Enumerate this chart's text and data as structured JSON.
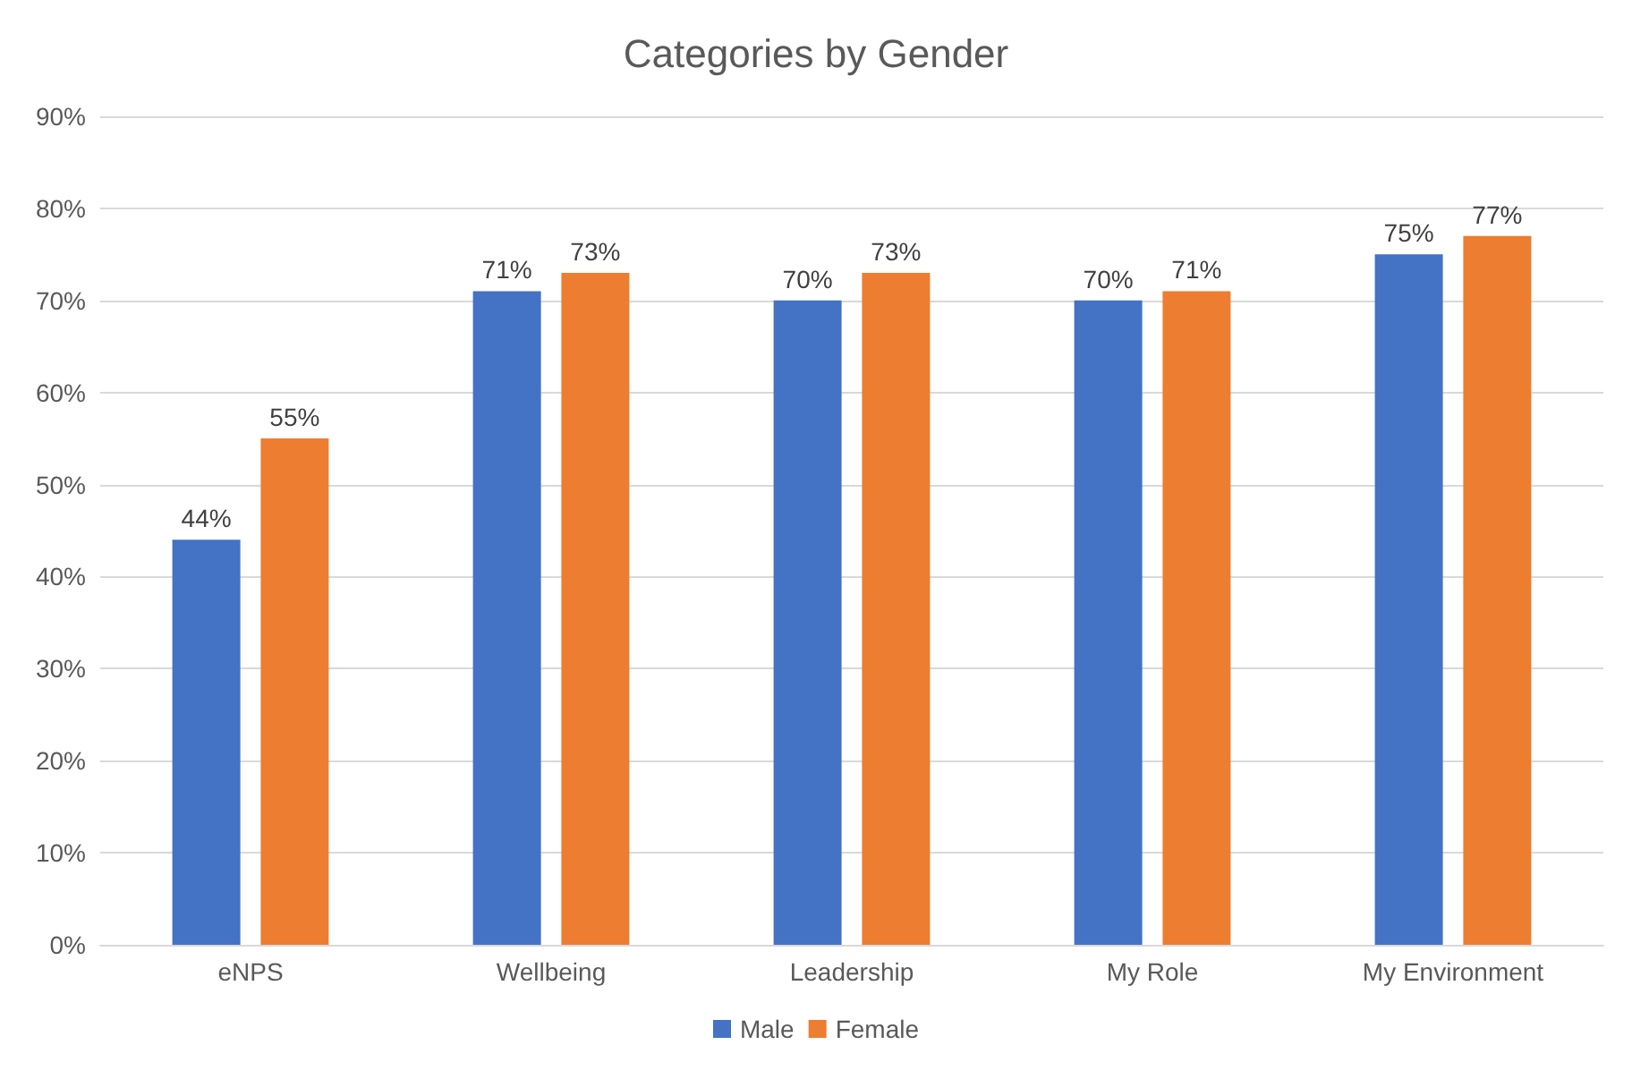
{
  "chart_data": {
    "type": "bar",
    "title": "Categories by Gender",
    "categories": [
      "eNPS",
      "Wellbeing",
      "Leadership",
      "My Role",
      "My Environment"
    ],
    "series": [
      {
        "name": "Male",
        "color": "#4472c4",
        "values": [
          44,
          71,
          70,
          70,
          75
        ],
        "value_labels": [
          "44%",
          "71%",
          "70%",
          "70%",
          "75%"
        ]
      },
      {
        "name": "Female",
        "color": "#ed7d31",
        "values": [
          55,
          73,
          73,
          71,
          77
        ],
        "value_labels": [
          "55%",
          "73%",
          "73%",
          "71%",
          "77%"
        ]
      }
    ],
    "ylim": [
      0,
      90
    ],
    "yticks": [
      {
        "value": 0,
        "label": "0%"
      },
      {
        "value": 10,
        "label": "10%"
      },
      {
        "value": 20,
        "label": "20%"
      },
      {
        "value": 30,
        "label": "30%"
      },
      {
        "value": 40,
        "label": "40%"
      },
      {
        "value": 50,
        "label": "50%"
      },
      {
        "value": 60,
        "label": "60%"
      },
      {
        "value": 70,
        "label": "70%"
      },
      {
        "value": 80,
        "label": "80%"
      },
      {
        "value": 90,
        "label": "90%"
      }
    ],
    "grid": "y",
    "legend": "bottom"
  }
}
